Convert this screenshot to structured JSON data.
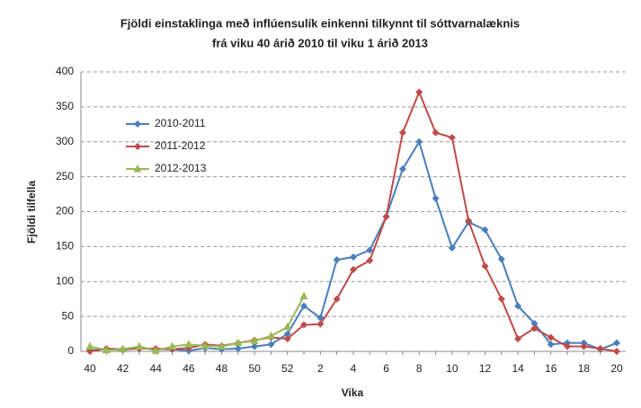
{
  "chart_data": {
    "type": "line",
    "title": "Fjöldi einstaklinga með inflúensulík einkenni tilkynnt til sóttvarnalæknis",
    "subtitle": "frá viku 40 árið 2010 til viku 1 árið 2013",
    "x_label": "Vika",
    "y_label": "Fjöldi tilfella",
    "categories": [
      "40",
      null,
      "42",
      null,
      "44",
      null,
      "46",
      null,
      "48",
      null,
      "50",
      null,
      "52",
      null,
      "2",
      null,
      "4",
      null,
      "6",
      null,
      "8",
      null,
      "10",
      null,
      "12",
      null,
      "14",
      null,
      "16",
      null,
      "18",
      null,
      "20"
    ],
    "series": [
      {
        "name": "2010-2011",
        "color": "#4a7ebb",
        "marker": "diamond",
        "values": [
          2,
          3,
          2,
          5,
          3,
          3,
          1,
          5,
          3,
          4,
          7,
          10,
          25,
          65,
          48,
          131,
          135,
          145,
          193,
          261,
          300,
          219,
          148,
          185,
          174,
          132,
          65,
          40,
          10,
          12,
          12,
          3,
          12
        ]
      },
      {
        "name": "2011-2012",
        "color": "#be4b48",
        "marker": "diamond",
        "values": [
          0,
          4,
          3,
          4,
          4,
          3,
          5,
          10,
          8,
          12,
          16,
          20,
          18,
          38,
          39,
          75,
          117,
          130,
          193,
          313,
          371,
          313,
          306,
          187,
          122,
          75,
          18,
          33,
          20,
          7,
          7,
          4,
          0
        ]
      },
      {
        "name": "2012-2013",
        "color": "#98b954",
        "marker": "triangle",
        "values": [
          7,
          2,
          3,
          7,
          1,
          7,
          10,
          8,
          7,
          12,
          15,
          22,
          35,
          79,
          null,
          null,
          null,
          null,
          null,
          null,
          null,
          null,
          null,
          null,
          null,
          null,
          null,
          null,
          null,
          null,
          null,
          null,
          null
        ]
      }
    ],
    "ylim": [
      0,
      400
    ],
    "yticks": [
      0,
      50,
      100,
      150,
      200,
      250,
      300,
      350,
      400
    ],
    "grid": true,
    "legend": "upper-left"
  }
}
